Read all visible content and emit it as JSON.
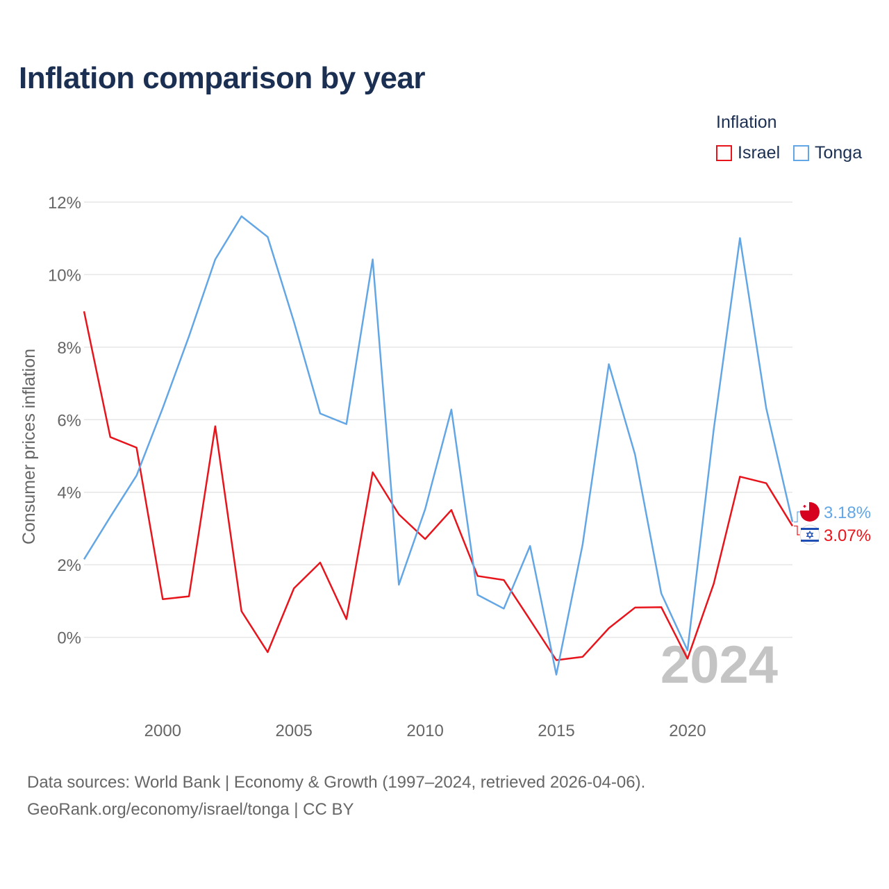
{
  "header": {
    "title": "Inflation comparison by year"
  },
  "legend": {
    "title": "Inflation",
    "items": [
      {
        "label": "Israel",
        "color": "#e8141b"
      },
      {
        "label": "Tonga",
        "color": "#63a6e5"
      }
    ]
  },
  "chart_data": {
    "type": "line",
    "title": "Inflation comparison by year",
    "xlabel": "",
    "ylabel": "Consumer prices inflation",
    "xlim": [
      1997,
      2024
    ],
    "ylim": [
      -2,
      12
    ],
    "x_ticks": [
      2000,
      2005,
      2010,
      2015,
      2020
    ],
    "y_ticks": [
      0,
      2,
      4,
      6,
      8,
      10,
      12
    ],
    "y_tick_labels": [
      "0%",
      "2%",
      "4%",
      "6%",
      "8%",
      "10%",
      "12%"
    ],
    "grid": true,
    "legend_position": "top-right",
    "year_watermark": "2024",
    "x": [
      1997,
      1998,
      1999,
      2000,
      2001,
      2002,
      2003,
      2004,
      2005,
      2006,
      2007,
      2008,
      2009,
      2010,
      2011,
      2012,
      2013,
      2014,
      2015,
      2016,
      2017,
      2018,
      2019,
      2020,
      2021,
      2022,
      2023,
      2024
    ],
    "series": [
      {
        "name": "Israel",
        "color": "#e8141b",
        "values": [
          8.99,
          5.52,
          5.23,
          1.05,
          1.13,
          5.82,
          0.72,
          -0.41,
          1.35,
          2.06,
          0.5,
          4.55,
          3.39,
          2.71,
          3.51,
          1.69,
          1.58,
          0.48,
          -0.63,
          -0.54,
          0.25,
          0.82,
          0.83,
          -0.59,
          1.48,
          4.43,
          4.25,
          3.07
        ],
        "end_label": "3.07%"
      },
      {
        "name": "Tonga",
        "color": "#63a6e5",
        "values": [
          2.15,
          3.32,
          4.46,
          6.32,
          8.3,
          10.42,
          11.61,
          11.04,
          8.7,
          6.17,
          5.88,
          10.42,
          1.45,
          3.53,
          6.28,
          1.17,
          0.79,
          2.52,
          -1.03,
          2.55,
          7.53,
          5.04,
          1.21,
          -0.36,
          5.74,
          11.01,
          6.32,
          3.18
        ],
        "end_label": "3.18%"
      }
    ]
  },
  "source": {
    "line1": "Data sources: World Bank | Economy & Growth (1997–2024, retrieved 2026-04-06).",
    "line2": "GeoRank.org/economy/israel/tonga | CC BY"
  }
}
